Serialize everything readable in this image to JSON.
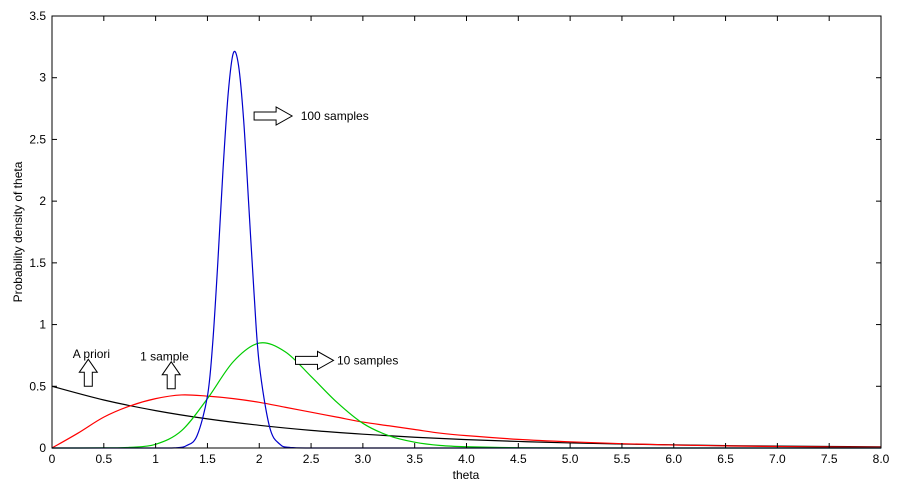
{
  "chart_data": {
    "type": "line",
    "title": "",
    "xlabel": "theta",
    "ylabel": "Probability density of theta",
    "xlim": [
      0,
      8
    ],
    "ylim": [
      0,
      3.5
    ],
    "grid": false,
    "legend": "none",
    "x_ticks": [
      0,
      0.5,
      1,
      1.5,
      2,
      2.5,
      3,
      3.5,
      4,
      4.5,
      5,
      5.5,
      6,
      6.5,
      7,
      7.5,
      8
    ],
    "x_tick_labels": [
      "0",
      "0.5",
      "1",
      "1.5",
      "2",
      "2.5",
      "3.0",
      "3.5",
      "4.0",
      "4.5",
      "5.0",
      "5.5",
      "6.0",
      "6.5",
      "7.0",
      "7.5",
      "8.0"
    ],
    "y_ticks": [
      0,
      0.5,
      1,
      1.5,
      2,
      2.5,
      3,
      3.5
    ],
    "y_tick_labels": [
      "0",
      "0.5",
      "1",
      "1.5",
      "2",
      "2.5",
      "3",
      "3.5"
    ],
    "series": [
      {
        "color": "#000000",
        "x": [
          0,
          0.5,
          1,
          1.5,
          2,
          2.5,
          3,
          3.5,
          4,
          4.5,
          5,
          5.5,
          6,
          6.5,
          7,
          7.5,
          8
        ],
        "y": [
          0.5,
          0.389,
          0.303,
          0.236,
          0.184,
          0.143,
          0.112,
          0.087,
          0.068,
          0.053,
          0.041,
          0.032,
          0.025,
          0.019,
          0.015,
          0.012,
          0.009
        ]
      },
      {
        "color": "#ff0000",
        "x": [
          0,
          0.25,
          0.5,
          0.75,
          1,
          1.25,
          1.5,
          1.75,
          2,
          2.25,
          2.5,
          2.75,
          3,
          3.25,
          3.5,
          3.75,
          4,
          4.5,
          5,
          5.5,
          6,
          6.5,
          7,
          7.5,
          8
        ],
        "y": [
          0,
          0.12,
          0.25,
          0.34,
          0.4,
          0.43,
          0.42,
          0.4,
          0.37,
          0.33,
          0.29,
          0.25,
          0.21,
          0.18,
          0.15,
          0.12,
          0.1,
          0.07,
          0.05,
          0.035,
          0.024,
          0.017,
          0.012,
          0.008,
          0.006
        ]
      },
      {
        "color": "#00cc00",
        "x": [
          0,
          0.5,
          0.75,
          1,
          1.25,
          1.5,
          1.75,
          2,
          2.25,
          2.5,
          2.75,
          3,
          3.25,
          3.5,
          3.75,
          4,
          4.5,
          5,
          6,
          7,
          8
        ],
        "y": [
          0,
          0.001,
          0.005,
          0.03,
          0.14,
          0.4,
          0.7,
          0.85,
          0.78,
          0.58,
          0.37,
          0.2,
          0.1,
          0.047,
          0.02,
          0.01,
          0.002,
          0,
          0,
          0,
          0
        ]
      },
      {
        "color": "#0000cc",
        "x": [
          0,
          1,
          1.2,
          1.3,
          1.4,
          1.5,
          1.55,
          1.6,
          1.65,
          1.7,
          1.75,
          1.8,
          1.85,
          1.9,
          1.95,
          2,
          2.1,
          2.2,
          2.3,
          2.5,
          3,
          8
        ],
        "y": [
          0,
          0,
          0.002,
          0.02,
          0.1,
          0.42,
          0.84,
          1.5,
          2.25,
          2.87,
          3.2,
          3.1,
          2.65,
          1.95,
          1.25,
          0.68,
          0.17,
          0.03,
          0.004,
          0,
          0,
          0
        ]
      }
    ],
    "annotations": [
      {
        "text": "100 samples",
        "x": 2.4,
        "y": 2.69,
        "arrow": "right",
        "arrow_x": 1.95,
        "arrow_y": 2.69
      },
      {
        "text": "10 samples",
        "x": 2.75,
        "y": 0.71,
        "arrow": "right",
        "arrow_x": 2.35,
        "arrow_y": 0.71
      },
      {
        "text": "A priori",
        "x": 0.2,
        "y": 0.76,
        "arrow": "up",
        "arrow_x": 0.35,
        "arrow_y": 0.5
      },
      {
        "text": "1 sample",
        "x": 0.85,
        "y": 0.74,
        "arrow": "up",
        "arrow_x": 1.15,
        "arrow_y": 0.48
      }
    ]
  }
}
